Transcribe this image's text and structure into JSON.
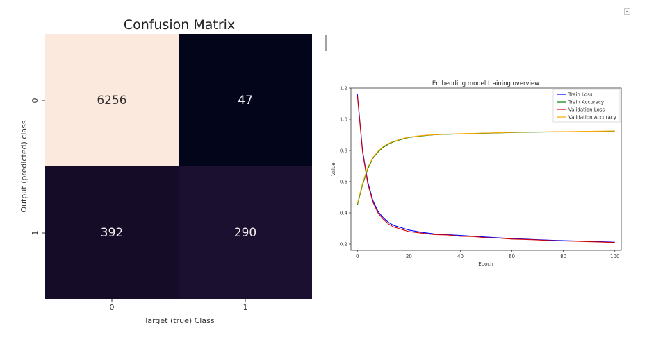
{
  "chart_data": [
    {
      "type": "heatmap",
      "title": "Confusion Matrix",
      "xlabel": "Target (true) Class",
      "ylabel": "Output (predicted) class",
      "x_tick_labels": [
        "0",
        "1"
      ],
      "y_tick_labels": [
        "0",
        "1"
      ],
      "values": [
        [
          6256,
          47
        ],
        [
          392,
          290
        ]
      ],
      "colors": {
        "high": "#fbe9de",
        "low": "#03051a",
        "mid_low": "#150c27",
        "mid": "#1c1030"
      }
    },
    {
      "type": "line",
      "title": "Embedding model training overview",
      "xlabel": "Epoch",
      "ylabel": "Value",
      "xlim": [
        0,
        100
      ],
      "ylim": [
        0.16,
        1.2
      ],
      "x_ticks": [
        0,
        20,
        40,
        60,
        80,
        100
      ],
      "y_ticks": [
        0.2,
        0.4,
        0.6,
        0.8,
        1.0,
        1.2
      ],
      "x_tick_labels": [
        "0",
        "20",
        "40",
        "60",
        "80",
        "100"
      ],
      "y_tick_labels": [
        "0.2",
        "0.4",
        "0.6",
        "0.8",
        "1.0",
        "1.2"
      ],
      "legend_position": "top-right",
      "x": [
        0,
        2,
        4,
        6,
        8,
        10,
        12,
        14,
        16,
        18,
        20,
        25,
        30,
        35,
        40,
        45,
        50,
        55,
        60,
        65,
        70,
        75,
        80,
        85,
        90,
        95,
        100
      ],
      "series": [
        {
          "name": "Train Loss",
          "color": "#0000ff",
          "values": [
            1.16,
            0.8,
            0.6,
            0.48,
            0.41,
            0.37,
            0.34,
            0.32,
            0.31,
            0.3,
            0.29,
            0.275,
            0.265,
            0.26,
            0.255,
            0.25,
            0.245,
            0.24,
            0.235,
            0.232,
            0.228,
            0.225,
            0.222,
            0.22,
            0.218,
            0.215,
            0.212
          ]
        },
        {
          "name": "Train Accuracy",
          "color": "#008000",
          "values": [
            0.45,
            0.58,
            0.68,
            0.75,
            0.79,
            0.82,
            0.84,
            0.855,
            0.865,
            0.875,
            0.883,
            0.893,
            0.9,
            0.903,
            0.906,
            0.908,
            0.91,
            0.912,
            0.914,
            0.916,
            0.917,
            0.918,
            0.919,
            0.92,
            0.921,
            0.922,
            0.923
          ]
        },
        {
          "name": "Validation Loss",
          "color": "#d40000",
          "values": [
            1.15,
            0.79,
            0.59,
            0.47,
            0.4,
            0.36,
            0.33,
            0.31,
            0.3,
            0.29,
            0.28,
            0.27,
            0.26,
            0.258,
            0.25,
            0.248,
            0.24,
            0.238,
            0.232,
            0.23,
            0.226,
            0.222,
            0.22,
            0.218,
            0.215,
            0.213,
            0.21
          ]
        },
        {
          "name": "Validation Accuracy",
          "color": "#ffa500",
          "values": [
            0.46,
            0.59,
            0.69,
            0.755,
            0.795,
            0.825,
            0.845,
            0.858,
            0.868,
            0.878,
            0.885,
            0.895,
            0.901,
            0.904,
            0.907,
            0.909,
            0.911,
            0.913,
            0.915,
            0.917,
            0.918,
            0.919,
            0.92,
            0.921,
            0.922,
            0.923,
            0.924
          ]
        }
      ]
    }
  ]
}
